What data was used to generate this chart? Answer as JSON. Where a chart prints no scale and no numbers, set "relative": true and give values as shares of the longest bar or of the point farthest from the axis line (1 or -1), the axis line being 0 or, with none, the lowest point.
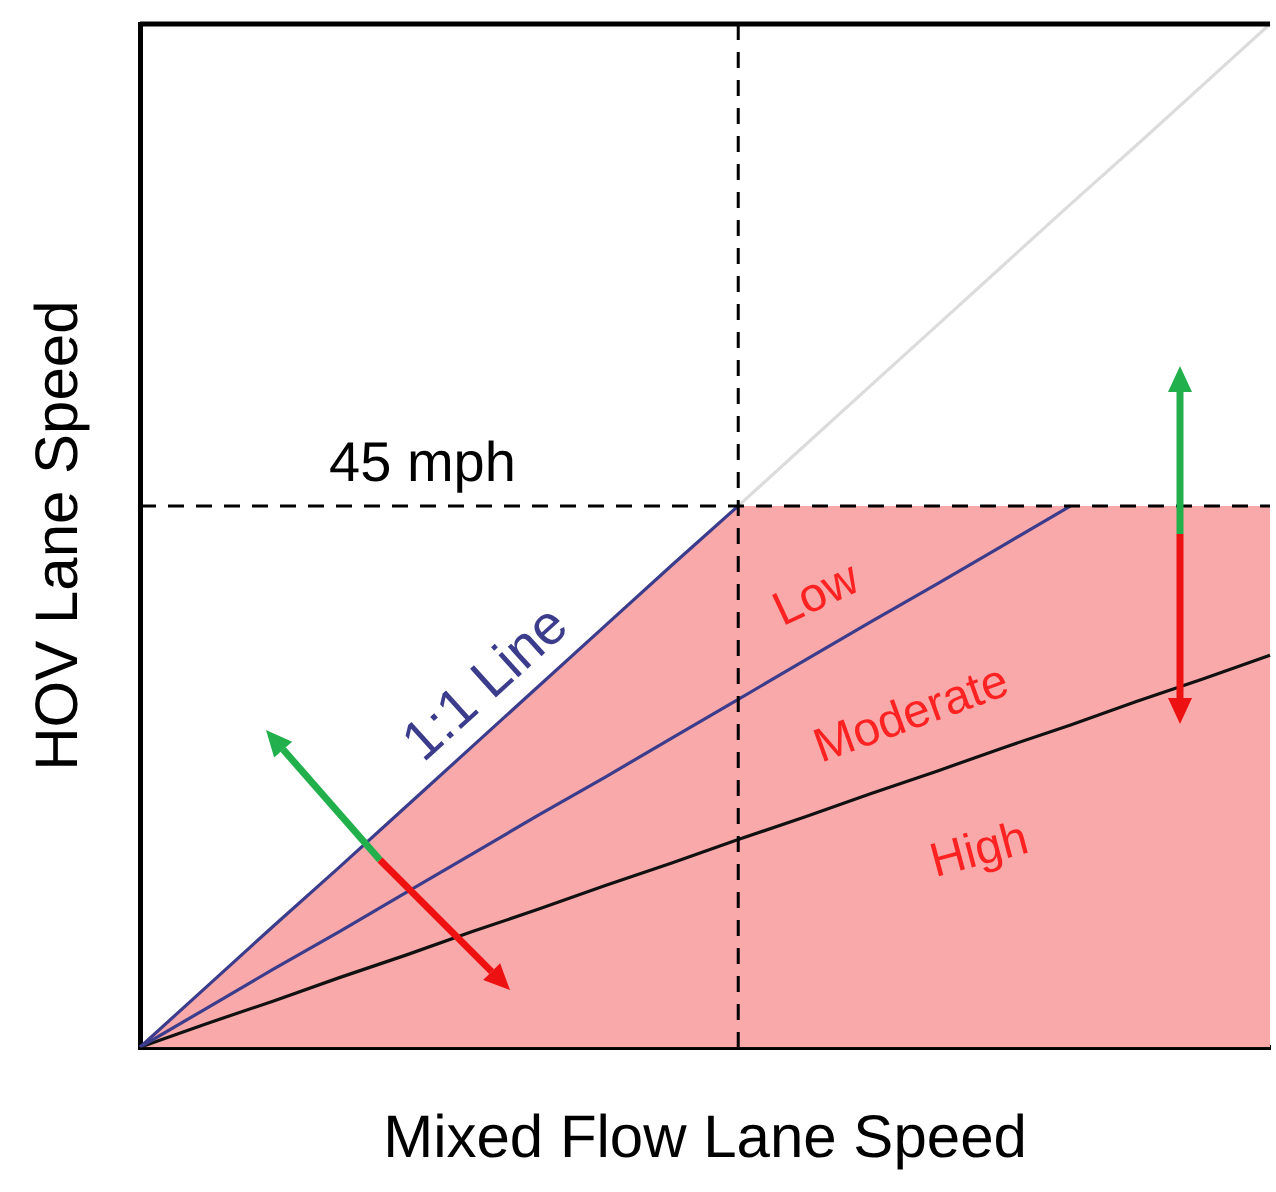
{
  "chart_data": {
    "type": "line",
    "relative": true,
    "xlabel": "Mixed Flow Lane Speed",
    "ylabel": "HOV Lane Speed",
    "marker": "none",
    "categories": [
      null,
      null,
      null,
      null,
      null,
      null,
      null,
      null,
      null,
      null,
      null,
      null,
      null,
      null,
      null,
      null,
      null,
      null
    ],
    "series": [
      {
        "type": "area",
        "color": "#f9a9a9",
        "values": [
          0,
          0.059,
          0.118,
          0.176,
          0.235,
          0.294,
          0.353,
          0.412,
          0.471,
          0.529,
          0.529,
          0.529,
          0.529,
          0.529,
          0.529,
          0.529,
          0.529,
          0.529
        ]
      },
      {
        "name": "1:1 Line",
        "color": "#3c3c8c",
        "values": [
          0,
          0.059,
          0.118,
          0.176,
          0.235,
          0.294,
          0.353,
          0.412,
          0.471,
          0.529,
          null,
          null,
          null,
          null,
          null,
          null,
          null,
          null
        ]
      },
      {
        "color": "#dcdcdc",
        "values": [
          null,
          null,
          null,
          null,
          null,
          null,
          null,
          null,
          null,
          0.529,
          0.588,
          0.647,
          0.706,
          0.765,
          0.824,
          0.882,
          0.941,
          1.0
        ]
      },
      {
        "color": "#3c3c8c",
        "values": [
          0,
          0.038,
          0.076,
          0.113,
          0.151,
          0.189,
          0.227,
          0.264,
          0.302,
          0.34,
          0.378,
          0.416,
          0.453,
          0.491,
          0.529,
          null,
          null,
          null
        ]
      },
      {
        "color": "#111111",
        "values": [
          0,
          0.023,
          0.045,
          0.068,
          0.09,
          0.113,
          0.135,
          0.158,
          0.18,
          0.203,
          0.225,
          0.248,
          0.27,
          0.293,
          0.315,
          0.338,
          0.36,
          0.383
        ]
      }
    ],
    "ref_lines": [
      {
        "axis": "y",
        "value": 0.529,
        "label": "45 mph",
        "color": "#000000",
        "line_style": "dashed"
      },
      {
        "axis": "x",
        "color": "#000000",
        "line_style": "dashed"
      }
    ],
    "annotations": [
      "Low",
      "Moderate",
      "High"
    ]
  }
}
